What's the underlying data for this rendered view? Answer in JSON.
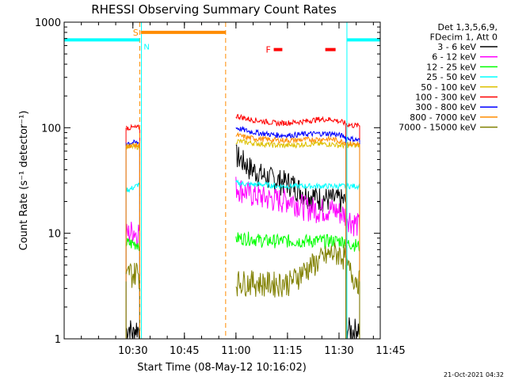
{
  "chart_data": {
    "type": "line",
    "title": "RHESSI Observing Summary Count Rates",
    "xlabel": "Start Time (08-May-12 10:16:02)",
    "ylabel": "Count Rate (s⁻¹ detector⁻¹)",
    "y_scale": "log",
    "ylim": [
      1,
      1000
    ],
    "xlim_minutes": [
      10.0,
      102.0
    ],
    "x_ticks": [
      {
        "label": "10:30",
        "minute": 30
      },
      {
        "label": "10:45",
        "minute": 45
      },
      {
        "label": "11:00",
        "minute": 60
      },
      {
        "label": "11:15",
        "minute": 75
      },
      {
        "label": "11:30",
        "minute": 90
      },
      {
        "label": "11:45",
        "minute": 105
      }
    ],
    "y_ticks": [
      {
        "label": "1",
        "value": 1
      },
      {
        "label": "10",
        "value": 10
      },
      {
        "label": "100",
        "value": 100
      },
      {
        "label": "1000",
        "value": 1000
      }
    ],
    "legend": {
      "position": "right",
      "header": [
        "Det 1,3,5,6,9,",
        "FDecim 1, Att 0"
      ]
    },
    "series": [
      {
        "name": "3 - 6 keV",
        "color": "#000000",
        "seg1": [
          [
            28.0,
            1.2
          ],
          [
            29.0,
            1.3
          ],
          [
            30.0,
            1.1
          ],
          [
            31.0,
            1.3
          ],
          [
            32.0,
            1.2
          ]
        ],
        "seg2": [
          [
            60,
            55
          ],
          [
            64,
            42
          ],
          [
            68,
            35
          ],
          [
            72,
            32
          ],
          [
            76,
            30
          ],
          [
            80,
            24
          ],
          [
            84,
            22
          ],
          [
            88,
            21
          ],
          [
            90,
            21
          ],
          [
            92,
            20
          ]
        ],
        "seg3": [
          [
            92.0,
            1.3
          ],
          [
            94.0,
            1.2
          ],
          [
            96.0,
            1.3
          ]
        ]
      },
      {
        "name": "6 - 12 keV",
        "color": "#ff00ff",
        "seg1": [
          [
            28.0,
            10
          ],
          [
            29.0,
            10
          ],
          [
            30.0,
            11
          ],
          [
            31.0,
            10
          ],
          [
            32.0,
            11
          ]
        ],
        "seg2": [
          [
            60,
            28
          ],
          [
            64,
            24
          ],
          [
            68,
            22
          ],
          [
            72,
            21
          ],
          [
            76,
            21
          ],
          [
            80,
            18
          ],
          [
            84,
            17
          ],
          [
            88,
            17
          ],
          [
            90,
            16
          ],
          [
            92,
            15
          ]
        ],
        "seg3": [
          [
            92.0,
            15
          ],
          [
            94.0,
            13
          ],
          [
            96.0,
            12
          ]
        ]
      },
      {
        "name": "12 - 25 keV",
        "color": "#00ff00",
        "seg1": [
          [
            28.0,
            8
          ],
          [
            29.0,
            8
          ],
          [
            30.0,
            8
          ],
          [
            31.0,
            8
          ],
          [
            32.0,
            8
          ]
        ],
        "seg2": [
          [
            60,
            9
          ],
          [
            64,
            9
          ],
          [
            68,
            8.5
          ],
          [
            72,
            8.5
          ],
          [
            76,
            8.5
          ],
          [
            80,
            8.5
          ],
          [
            84,
            8.5
          ],
          [
            88,
            8.5
          ],
          [
            90,
            8.5
          ],
          [
            92,
            8.5
          ]
        ],
        "seg3": [
          [
            92.0,
            8
          ],
          [
            94.0,
            8
          ],
          [
            96.0,
            7.5
          ]
        ]
      },
      {
        "name": "25 - 50 keV",
        "color": "#00ffff",
        "seg1": [
          [
            28.0,
            26
          ],
          [
            29.0,
            26
          ],
          [
            30.0,
            27
          ],
          [
            31.0,
            28
          ],
          [
            32.0,
            30
          ]
        ],
        "seg2": [
          [
            60,
            30
          ],
          [
            64,
            29
          ],
          [
            68,
            29
          ],
          [
            72,
            28
          ],
          [
            76,
            28
          ],
          [
            80,
            28
          ],
          [
            84,
            28
          ],
          [
            88,
            28
          ],
          [
            90,
            28
          ],
          [
            92,
            28
          ]
        ],
        "seg3": [
          [
            92.0,
            28
          ],
          [
            94.0,
            28
          ],
          [
            96.0,
            28
          ]
        ]
      },
      {
        "name": "50 - 100 keV",
        "color": "#ddc000",
        "seg1": [
          [
            28.0,
            66
          ],
          [
            29.0,
            66
          ],
          [
            30.0,
            66
          ],
          [
            31.0,
            66
          ],
          [
            32.0,
            66
          ]
        ],
        "seg2": [
          [
            60,
            75
          ],
          [
            64,
            72
          ],
          [
            68,
            70
          ],
          [
            72,
            68
          ],
          [
            76,
            68
          ],
          [
            80,
            70
          ],
          [
            84,
            70
          ],
          [
            88,
            70
          ],
          [
            90,
            68
          ],
          [
            92,
            68
          ]
        ],
        "seg3": [
          [
            92.0,
            68
          ],
          [
            94.0,
            68
          ],
          [
            96.0,
            68
          ]
        ]
      },
      {
        "name": "100 - 300 keV",
        "color": "#ff0000",
        "seg1": [
          [
            28.0,
            100
          ],
          [
            29.0,
            100
          ],
          [
            30.0,
            100
          ],
          [
            31.0,
            100
          ],
          [
            32.0,
            100
          ]
        ],
        "seg2": [
          [
            60,
            130
          ],
          [
            64,
            120
          ],
          [
            68,
            115
          ],
          [
            72,
            110
          ],
          [
            76,
            112
          ],
          [
            80,
            115
          ],
          [
            84,
            120
          ],
          [
            88,
            120
          ],
          [
            90,
            115
          ],
          [
            92,
            110
          ]
        ],
        "seg3": [
          [
            92.0,
            108
          ],
          [
            94.0,
            105
          ],
          [
            96.0,
            105
          ]
        ]
      },
      {
        "name": "300 - 800 keV",
        "color": "#0000ff",
        "seg1": [
          [
            28.0,
            72
          ],
          [
            29.0,
            72
          ],
          [
            30.0,
            72
          ],
          [
            31.0,
            72
          ],
          [
            32.0,
            72
          ]
        ],
        "seg2": [
          [
            60,
            100
          ],
          [
            64,
            92
          ],
          [
            68,
            88
          ],
          [
            72,
            85
          ],
          [
            76,
            85
          ],
          [
            80,
            87
          ],
          [
            84,
            88
          ],
          [
            88,
            88
          ],
          [
            90,
            85
          ],
          [
            92,
            82
          ]
        ],
        "seg3": [
          [
            92.0,
            80
          ],
          [
            94.0,
            78
          ],
          [
            96.0,
            76
          ]
        ]
      },
      {
        "name": "800 - 7000 keV",
        "color": "#ff8c00",
        "seg1": [
          [
            28.0,
            68
          ],
          [
            29.0,
            68
          ],
          [
            30.0,
            68
          ],
          [
            31.0,
            68
          ],
          [
            32.0,
            68
          ]
        ],
        "seg2": [
          [
            60,
            85
          ],
          [
            64,
            80
          ],
          [
            68,
            78
          ],
          [
            72,
            76
          ],
          [
            76,
            76
          ],
          [
            80,
            77
          ],
          [
            84,
            78
          ],
          [
            88,
            78
          ],
          [
            90,
            75
          ],
          [
            92,
            73
          ]
        ],
        "seg3": [
          [
            92.0,
            72
          ],
          [
            94.0,
            70
          ],
          [
            96.0,
            70
          ]
        ]
      },
      {
        "name": "7000 - 15000 keV",
        "color": "#808000",
        "seg1": [
          [
            28.0,
            3.5
          ],
          [
            29.0,
            4.5
          ],
          [
            30.0,
            4.0
          ],
          [
            31.0,
            4.5
          ],
          [
            32.0,
            4.0
          ]
        ],
        "seg2": [
          [
            60,
            3.5
          ],
          [
            64,
            3.5
          ],
          [
            68,
            3.4
          ],
          [
            72,
            3.4
          ],
          [
            76,
            3.5
          ],
          [
            80,
            4.5
          ],
          [
            84,
            5.5
          ],
          [
            88,
            6.5
          ],
          [
            90,
            6.5
          ],
          [
            92,
            6.0
          ]
        ],
        "seg3": [
          [
            92.0,
            5.0
          ],
          [
            94.0,
            4.0
          ],
          [
            96.0,
            3.5
          ]
        ]
      }
    ],
    "annotations": {
      "saa": {
        "label": "S",
        "color": "#ff8c00",
        "start": 32.3,
        "end": 57.0,
        "level": 800
      },
      "night": {
        "label": "N",
        "color": "#00ffff",
        "intervals": [
          [
            10.0,
            32.0
          ],
          [
            92.4,
            102.0
          ]
        ],
        "level": 680
      },
      "flare": {
        "label": "F",
        "color": "#ff0000",
        "intervals": [
          [
            71.0,
            73.5
          ],
          [
            86.0,
            89.0
          ]
        ],
        "level": 550
      }
    },
    "vlines": [
      {
        "minute": 32.0,
        "color": "#ff8c00",
        "style": "dashed"
      },
      {
        "minute": 57.0,
        "color": "#ff8c00",
        "style": "dashed"
      },
      {
        "minute": 32.5,
        "color": "#00ffff",
        "style": "solid"
      },
      {
        "minute": 10.0,
        "color": "#00ffff",
        "style": "solid"
      },
      {
        "minute": 92.3,
        "color": "#00ffff",
        "style": "solid"
      },
      {
        "minute": 102.0,
        "color": "#00ffff",
        "style": "dashed"
      }
    ]
  },
  "footer_timestamp": "21-Oct-2021 04:32"
}
